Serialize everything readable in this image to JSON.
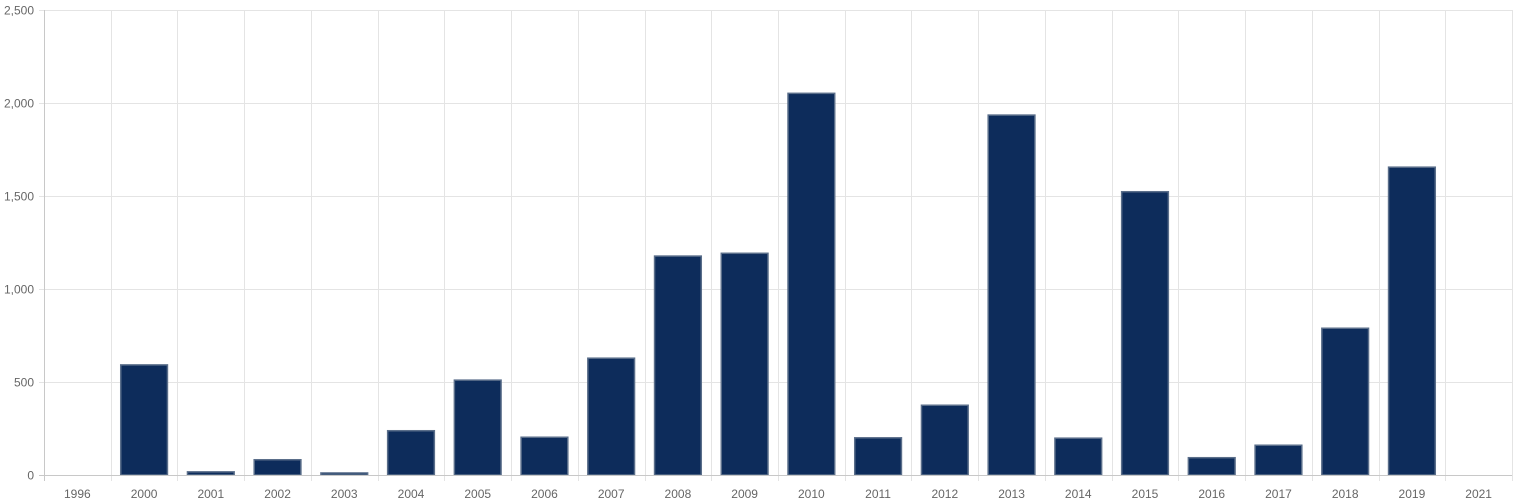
{
  "chart_data": {
    "type": "bar",
    "title": "",
    "xlabel": "",
    "ylabel": "",
    "categories": [
      "1996",
      "2000",
      "2001",
      "2002",
      "2003",
      "2004",
      "2005",
      "2006",
      "2007",
      "2008",
      "2009",
      "2010",
      "2011",
      "2012",
      "2013",
      "2014",
      "2015",
      "2016",
      "2017",
      "2018",
      "2019",
      "2021"
    ],
    "values": [
      0,
      592,
      17,
      82,
      11,
      238,
      510,
      203,
      628,
      1177,
      1192,
      2052,
      200,
      375,
      1935,
      198,
      1523,
      93,
      160,
      789,
      1655,
      0
    ],
    "ylim": [
      0,
      2500
    ],
    "yticks": [
      0,
      500,
      1000,
      1500,
      2000,
      2500
    ],
    "ytick_labels": [
      "0",
      "500",
      "1,000",
      "1,500",
      "2,000",
      "2,500"
    ],
    "grid": true,
    "bar_color": "#0d2c5b",
    "bar_border_color": "#5a6e8a",
    "legend": "none"
  }
}
